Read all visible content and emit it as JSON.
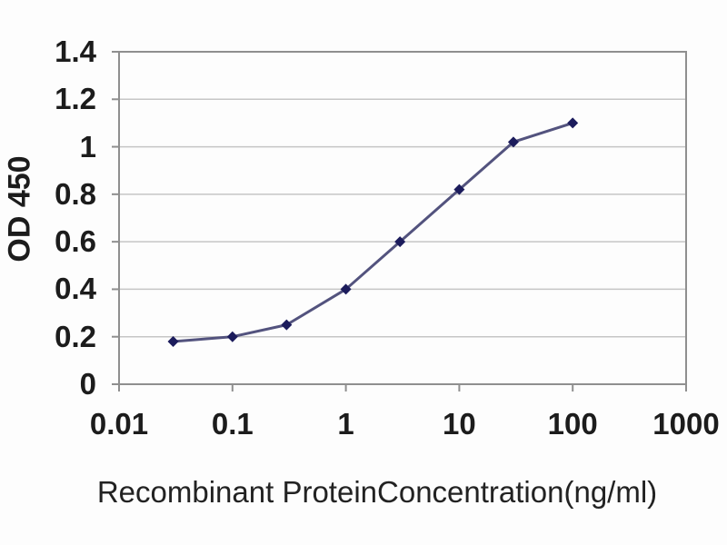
{
  "chart_data": {
    "type": "line",
    "title": "",
    "xlabel": "Recombinant ProteinConcentration(ng/ml)",
    "ylabel": "OD 450",
    "x_scale": "log",
    "xlim": [
      0.01,
      1000
    ],
    "ylim": [
      0,
      1.4
    ],
    "x_ticks": [
      "0.01",
      "0.1",
      "1",
      "10",
      "100",
      "1000"
    ],
    "y_ticks": [
      "0",
      "0.2",
      "0.4",
      "0.6",
      "0.8",
      "1",
      "1.2",
      "1.4"
    ],
    "grid": "horizontal",
    "legend": "none",
    "marker": "diamond",
    "x": [
      0.03,
      0.1,
      0.3,
      1,
      3,
      10,
      30,
      100
    ],
    "y": [
      0.18,
      0.2,
      0.25,
      0.4,
      0.6,
      0.82,
      1.02,
      1.1
    ],
    "colors": {
      "line": "#53537e",
      "marker": "#1c1c5c",
      "grid": "#c6c6c6",
      "frame": "#8f8f8f",
      "text": "#1c1c1c",
      "background": "#fdfdfd"
    }
  }
}
